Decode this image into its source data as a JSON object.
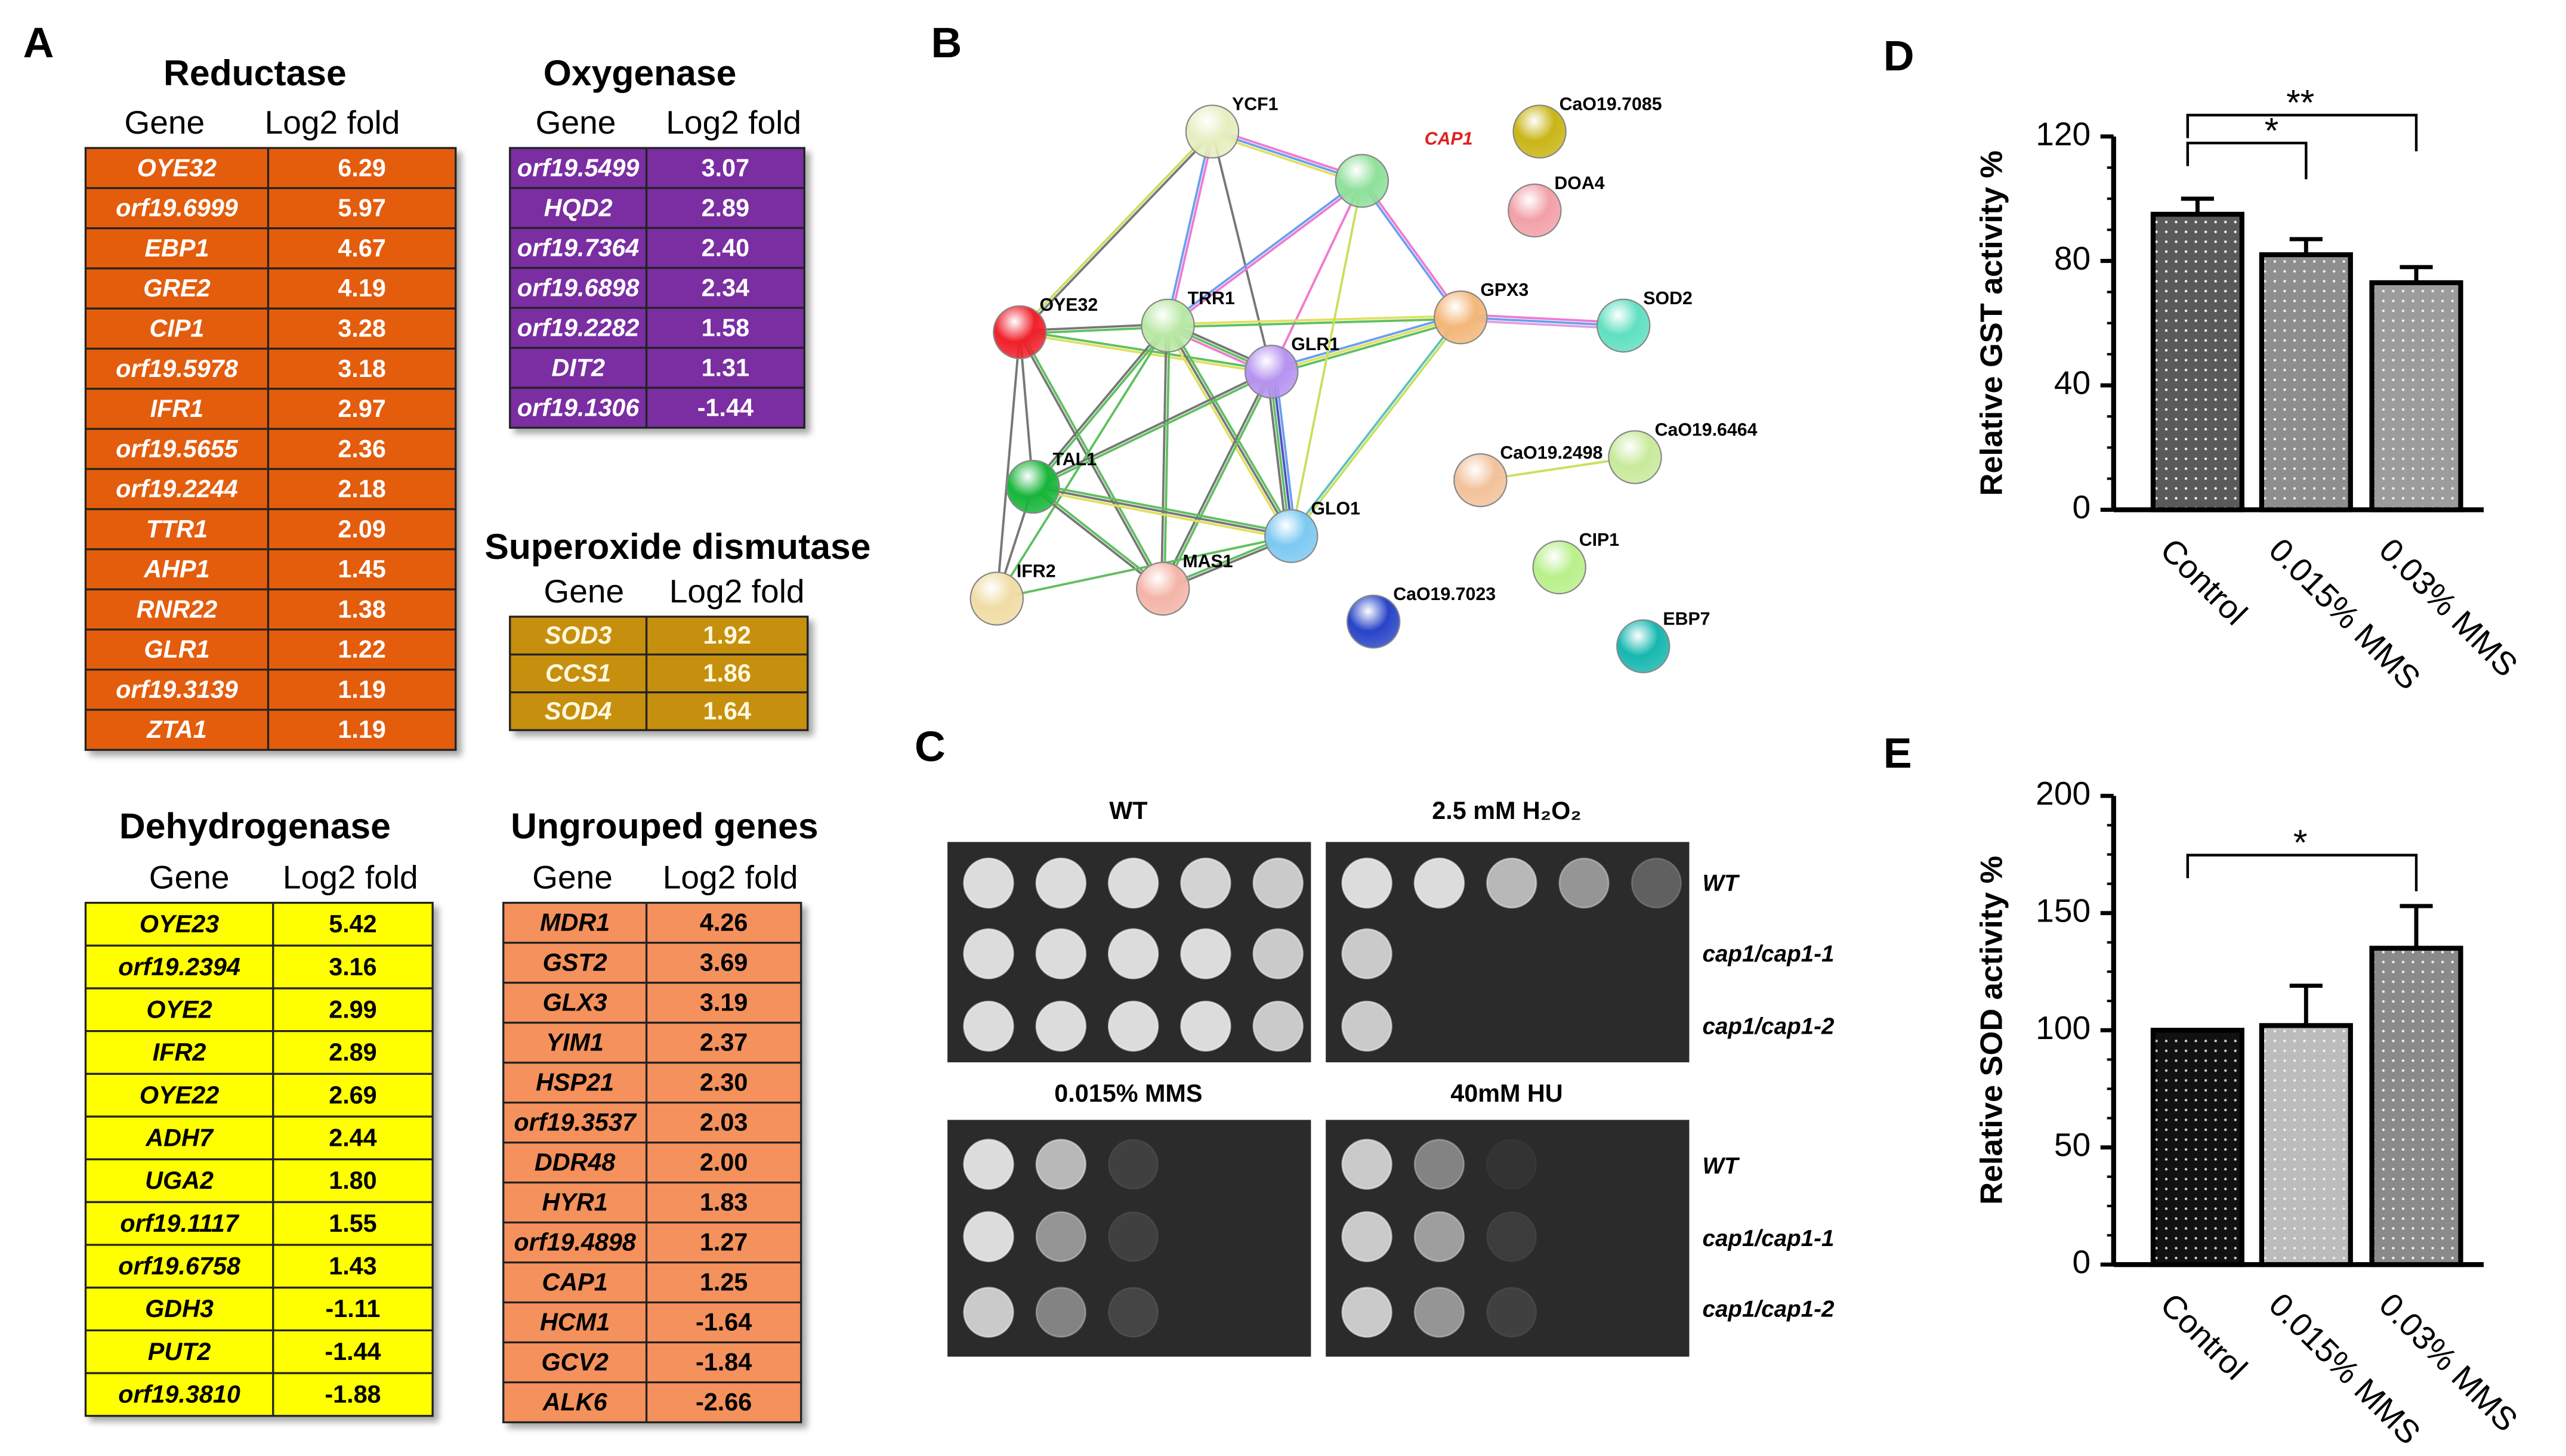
{
  "panels": {
    "a": "A",
    "b": "B",
    "c": "C",
    "d": "D",
    "e": "E"
  },
  "tables": [
    {
      "title": "Reductase",
      "headers": [
        "Gene",
        "Log2 fold"
      ],
      "rows": [
        [
          "OYE32",
          "6.29"
        ],
        [
          "orf19.6999",
          "5.97"
        ],
        [
          "EBP1",
          "4.67"
        ],
        [
          "GRE2",
          "4.19"
        ],
        [
          "CIP1",
          "3.28"
        ],
        [
          "orf19.5978",
          "3.18"
        ],
        [
          "IFR1",
          "2.97"
        ],
        [
          "orf19.5655",
          "2.36"
        ],
        [
          "orf19.2244",
          "2.18"
        ],
        [
          "TTR1",
          "2.09"
        ],
        [
          "AHP1",
          "1.45"
        ],
        [
          "RNR22",
          "1.38"
        ],
        [
          "GLR1",
          "1.22"
        ],
        [
          "orf19.3139",
          "1.19"
        ],
        [
          "ZTA1",
          "1.19"
        ]
      ]
    },
    {
      "title": "Oxygenase",
      "headers": [
        "Gene",
        "Log2 fold"
      ],
      "rows": [
        [
          "orf19.5499",
          "3.07"
        ],
        [
          "HQD2",
          "2.89"
        ],
        [
          "orf19.7364",
          "2.40"
        ],
        [
          "orf19.6898",
          "2.34"
        ],
        [
          "orf19.2282",
          "1.58"
        ],
        [
          "DIT2",
          "1.31"
        ],
        [
          "orf19.1306",
          "-1.44"
        ]
      ]
    },
    {
      "title": "Superoxide dismutase",
      "headers": [
        "Gene",
        "Log2 fold"
      ],
      "rows": [
        [
          "SOD3",
          "1.92"
        ],
        [
          "CCS1",
          "1.86"
        ],
        [
          "SOD4",
          "1.64"
        ]
      ]
    },
    {
      "title": "Dehydrogenase",
      "headers": [
        "Gene",
        "Log2 fold"
      ],
      "rows": [
        [
          "OYE23",
          "5.42"
        ],
        [
          "orf19.2394",
          "3.16"
        ],
        [
          "OYE2",
          "2.99"
        ],
        [
          "IFR2",
          "2.89"
        ],
        [
          "OYE22",
          "2.69"
        ],
        [
          "ADH7",
          "2.44"
        ],
        [
          "UGA2",
          "1.80"
        ],
        [
          "orf19.1117",
          "1.55"
        ],
        [
          "orf19.6758",
          "1.43"
        ],
        [
          "GDH3",
          "-1.11"
        ],
        [
          "PUT2",
          "-1.44"
        ],
        [
          "orf19.3810",
          "-1.88"
        ]
      ]
    },
    {
      "title": "Ungrouped genes",
      "headers": [
        "Gene",
        "Log2 fold"
      ],
      "rows": [
        [
          "MDR1",
          "4.26"
        ],
        [
          "GST2",
          "3.69"
        ],
        [
          "GLX3",
          "3.19"
        ],
        [
          "YIM1",
          "2.37"
        ],
        [
          "HSP21",
          "2.30"
        ],
        [
          "orf19.3537",
          "2.03"
        ],
        [
          "DDR48",
          "2.00"
        ],
        [
          "HYR1",
          "1.83"
        ],
        [
          "orf19.4898",
          "1.27"
        ],
        [
          "CAP1",
          "1.25"
        ],
        [
          "HCM1",
          "-1.64"
        ],
        [
          "GCV2",
          "-1.84"
        ],
        [
          "ALK6",
          "-2.66"
        ]
      ]
    }
  ],
  "network": {
    "nodes": [
      "YCF1",
      "CAP1",
      "CaO19.7085",
      "DOA4",
      "OYE32",
      "TRR1",
      "GLR1",
      "GPX3",
      "SOD2",
      "CaO19.2498",
      "CaO19.6464",
      "TAL1",
      "GLO1",
      "IFR2",
      "MAS1",
      "CIP1",
      "CaO19.7023",
      "EBP7"
    ]
  },
  "spot_assay": {
    "conditions": [
      "WT",
      "2.5 mM H₂O₂",
      "0.015% MMS",
      "40mM HU"
    ],
    "strains": [
      "WT",
      "cap1/cap1-1",
      "cap1/cap1-2"
    ]
  },
  "chart_data": [
    {
      "type": "bar",
      "ylabel": "Relative GST activity %",
      "categories": [
        "Control",
        "0.015% MMS",
        "0.03% MMS"
      ],
      "values": [
        95,
        82,
        73
      ],
      "errors": [
        5,
        5,
        5
      ],
      "ylim": [
        0,
        120
      ],
      "yticks": [
        0,
        40,
        80,
        120
      ],
      "annotations": [
        "*",
        "**"
      ]
    },
    {
      "type": "bar",
      "ylabel": "Relative SOD activity %",
      "categories": [
        "Control",
        "0.015% MMS",
        "0.03% MMS"
      ],
      "values": [
        100,
        102,
        135
      ],
      "errors": [
        0,
        17,
        18
      ],
      "ylim": [
        0,
        200
      ],
      "yticks": [
        0,
        50,
        100,
        150,
        200
      ],
      "annotations": [
        "*"
      ]
    }
  ]
}
